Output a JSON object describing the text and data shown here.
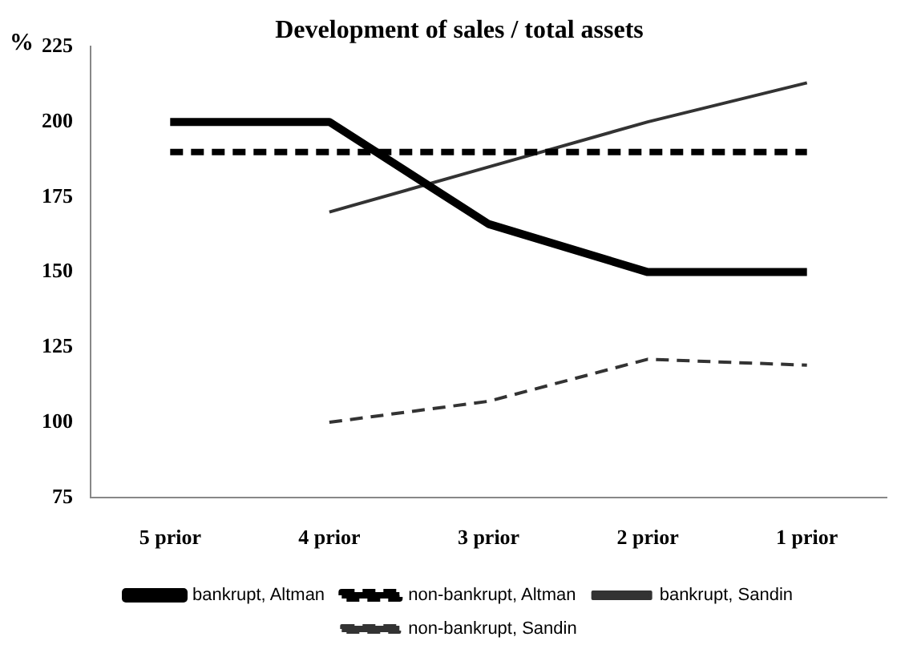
{
  "chart_data": {
    "type": "line",
    "title": "Development of sales / total assets",
    "ylabel": "%",
    "categories": [
      "5 prior",
      "4 prior",
      "3 prior",
      "2 prior",
      "1 prior"
    ],
    "series": [
      {
        "name": "bankrupt, Altman",
        "color": "#000000",
        "line_style": "solid",
        "values": [
          200,
          200,
          166,
          150,
          150
        ]
      },
      {
        "name": "non-bankrupt, Altman",
        "color": "#000000",
        "line_style": "dashed",
        "values": [
          190,
          190,
          190,
          190,
          190
        ]
      },
      {
        "name": "bankrupt, Sandin",
        "color": "#333333",
        "line_style": "solid",
        "values": [
          null,
          170,
          185,
          200,
          213
        ]
      },
      {
        "name": "non-bankrupt, Sandin",
        "color": "#333333",
        "line_style": "dashed",
        "values": [
          null,
          100,
          107,
          121,
          119
        ]
      }
    ],
    "ylim": [
      75,
      225
    ],
    "yticks": [
      75,
      100,
      125,
      150,
      175,
      200,
      225
    ],
    "grid": false,
    "legend": "bottom",
    "marker": "none"
  }
}
